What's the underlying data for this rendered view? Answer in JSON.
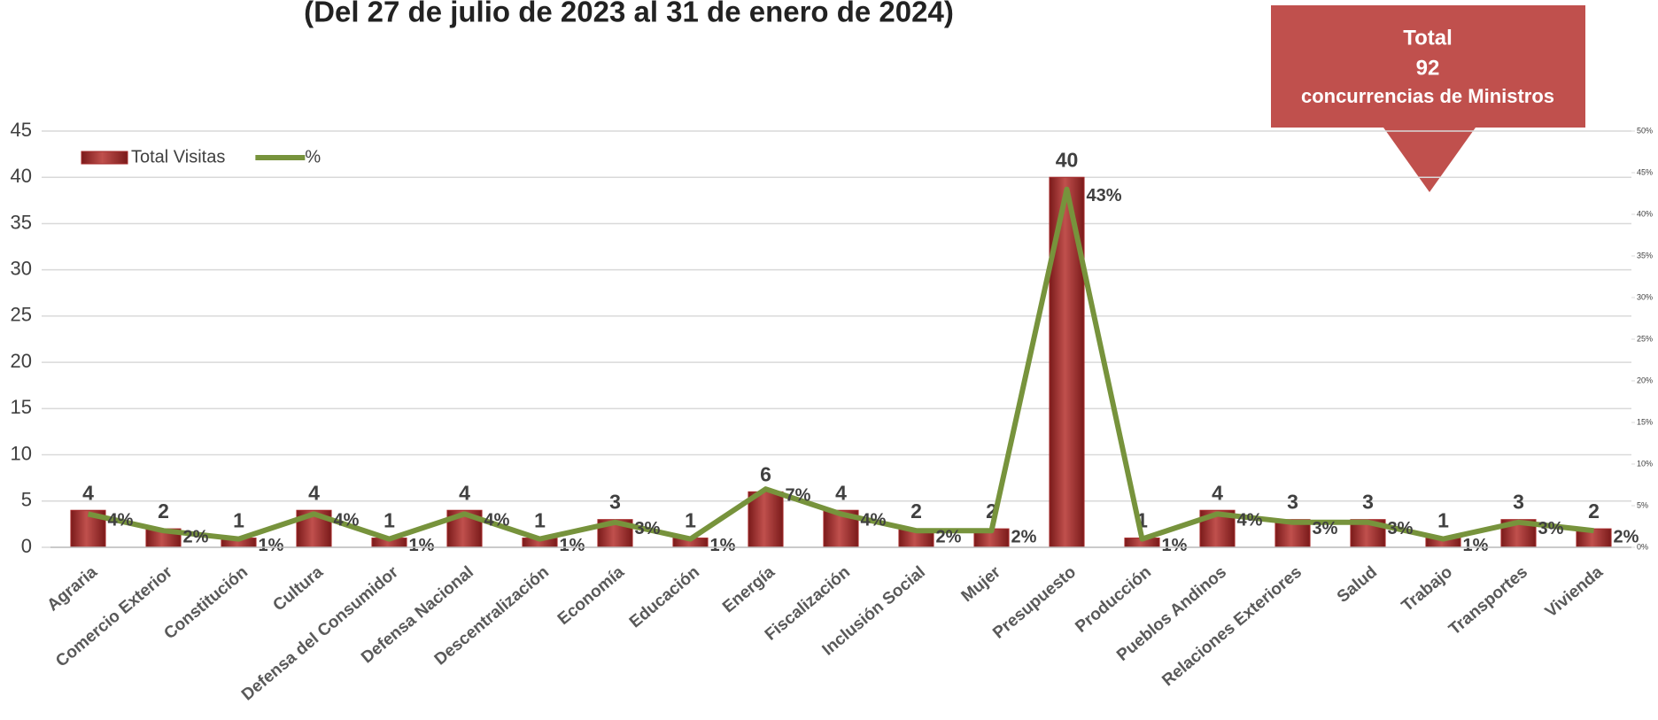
{
  "chart_data": {
    "type": "bar",
    "title": "(Del 27 de julio de 2023 al 31 de enero de 2024)",
    "callout": {
      "line1": "Total",
      "line2": "92",
      "line3": "concurrencias de Ministros"
    },
    "categories": [
      "Agraria",
      "Comercio Exterior",
      "Constitución",
      "Cultura",
      "Defensa del Consumidor",
      "Defensa Nacional",
      "Descentralización",
      "Economía",
      "Educación",
      "Energía",
      "Fiscalización",
      "Inclusión Social",
      "Mujer",
      "Presupuesto",
      "Producción",
      "Pueblos Andinos",
      "Relaciones Exteriores",
      "Salud",
      "Trabajo",
      "Transportes",
      "Vivienda"
    ],
    "series": [
      {
        "name": "Total Visitas",
        "color": "#a52a2a",
        "values": [
          4,
          2,
          1,
          4,
          1,
          4,
          1,
          3,
          1,
          6,
          4,
          2,
          2,
          40,
          1,
          4,
          3,
          3,
          1,
          3,
          2
        ]
      },
      {
        "name": "%",
        "color": "#77933c",
        "axis": "y2",
        "type": "line",
        "values": [
          4,
          2,
          1,
          4,
          1,
          4,
          1,
          3,
          1,
          7,
          4,
          2,
          2,
          43,
          1,
          4,
          3,
          3,
          1,
          3,
          2
        ],
        "value_labels": [
          "4%",
          "2%",
          "1%",
          "4%",
          "1%",
          "4%",
          "1%",
          "3%",
          "1%",
          "7%",
          "4%",
          "2%",
          "2%",
          "43%",
          "1%",
          "4%",
          "3%",
          "3%",
          "1%",
          "3%",
          "2%"
        ]
      }
    ],
    "ylim": [
      0,
      45
    ],
    "yticks": [
      0,
      5,
      10,
      15,
      20,
      25,
      30,
      35,
      40,
      45
    ],
    "y2lim": [
      0,
      50
    ],
    "y2ticks": [
      {
        "value": 0,
        "label": "0%"
      },
      {
        "value": 5,
        "label": "5%"
      },
      {
        "value": 10,
        "label": "10%"
      },
      {
        "value": 15,
        "label": "15%"
      },
      {
        "value": 20,
        "label": "20%"
      },
      {
        "value": 25,
        "label": "25%"
      },
      {
        "value": 30,
        "label": "30%"
      },
      {
        "value": 35,
        "label": "35%"
      },
      {
        "value": 40,
        "label": "40%"
      },
      {
        "value": 45,
        "label": "45%"
      },
      {
        "value": 50,
        "label": "50%"
      }
    ],
    "grid": true,
    "legend": "top-left"
  }
}
